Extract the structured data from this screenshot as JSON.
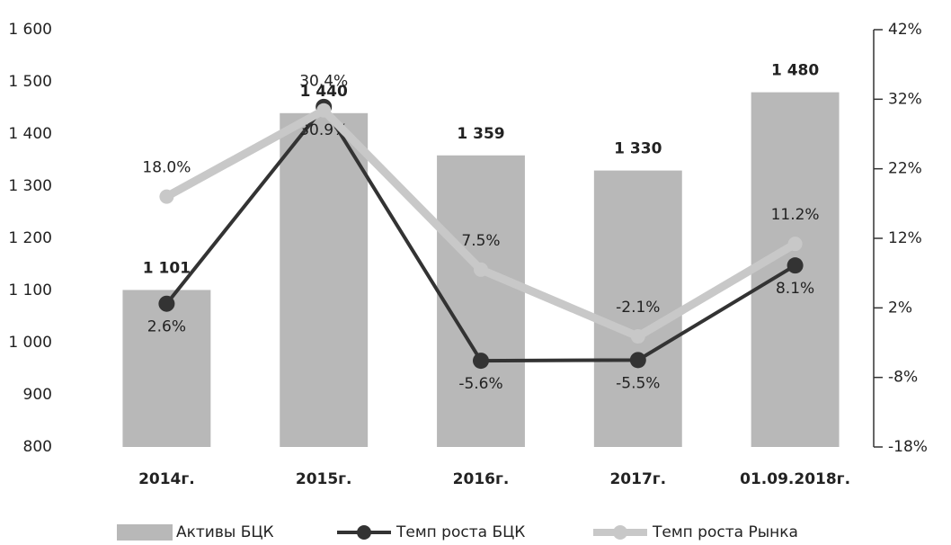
{
  "chart_data": {
    "type": "bar",
    "categories": [
      "2014г.",
      "2015г.",
      "2016г.",
      "2017г.",
      "01.09.2018г."
    ],
    "series": [
      {
        "name": "Активы БЦК",
        "type": "bar",
        "axis": "y",
        "color": "#b8b8b8",
        "values": [
          1101,
          1440,
          1359,
          1330,
          1480
        ],
        "value_labels": [
          "1 101",
          "1 440",
          "1 359",
          "1 330",
          "1 480"
        ]
      },
      {
        "name": "Темп роста БЦК",
        "type": "line",
        "axis": "y2",
        "color": "#333333",
        "values": [
          2.6,
          30.9,
          -5.6,
          -5.5,
          8.1
        ],
        "value_labels": [
          "2.6%",
          "30.9%",
          "-5.6%",
          "-5.5%",
          "8.1%"
        ]
      },
      {
        "name": "Темп роста Рынка",
        "type": "line",
        "axis": "y2",
        "color": "#c8c8c8",
        "values": [
          18.0,
          30.4,
          7.5,
          -2.1,
          11.2
        ],
        "value_labels": [
          "18.0%",
          "30.4%",
          "7.5%",
          "-2.1%",
          "11.2%"
        ]
      }
    ],
    "ylim": [
      800,
      1600
    ],
    "yticks": [
      800,
      900,
      {
        "value": 1000,
        "label": "1 000"
      },
      {
        "value": 1100,
        "label": "1 100"
      },
      {
        "value": 1200,
        "label": "1 200"
      },
      {
        "value": 1300,
        "label": "1 300"
      },
      {
        "value": 1400,
        "label": "1 400"
      },
      {
        "value": 1500,
        "label": "1 500"
      },
      {
        "value": 1600,
        "label": "1 600"
      }
    ],
    "y2lim": [
      -18,
      42
    ],
    "y2ticks": [
      {
        "value": -18,
        "label": "-18%"
      },
      {
        "value": -8,
        "label": "-8%"
      },
      {
        "value": 2,
        "label": "2%"
      },
      {
        "value": 12,
        "label": "12%"
      },
      {
        "value": 22,
        "label": "22%"
      },
      {
        "value": 32,
        "label": "32%"
      },
      {
        "value": 42,
        "label": "42%"
      }
    ]
  }
}
